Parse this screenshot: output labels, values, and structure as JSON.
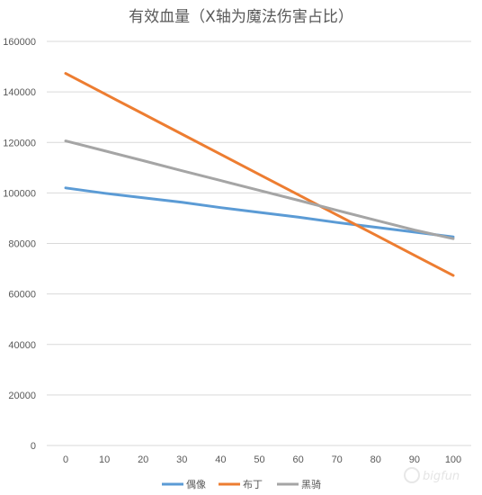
{
  "chart_data": {
    "type": "line",
    "title": "有效血量（X轴为魔法伤害占比）",
    "xlabel": "",
    "ylabel": "",
    "x": [
      0,
      10,
      20,
      30,
      40,
      50,
      60,
      70,
      80,
      90,
      100
    ],
    "x_tick_labels": [
      "0",
      "10",
      "20",
      "30",
      "40",
      "50",
      "60",
      "70",
      "80",
      "90",
      "100"
    ],
    "ylim": [
      0,
      160000
    ],
    "y_ticks": [
      0,
      20000,
      40000,
      60000,
      80000,
      100000,
      120000,
      140000,
      160000
    ],
    "y_tick_labels": [
      "0",
      "20000",
      "40000",
      "60000",
      "80000",
      "100000",
      "120000",
      "140000",
      "160000"
    ],
    "grid": true,
    "legend_position": "bottom",
    "series": [
      {
        "name": "偶像",
        "color": "#5b9bd5",
        "values": [
          102000,
          99900,
          98100,
          96300,
          94200,
          92300,
          90400,
          88300,
          86400,
          84500,
          82600
        ]
      },
      {
        "name": "布丁",
        "color": "#ed7d31",
        "values": [
          147300,
          139300,
          131300,
          123300,
          115300,
          107300,
          99300,
          91300,
          83300,
          75300,
          67300
        ]
      },
      {
        "name": "黑骑",
        "color": "#a5a5a5",
        "values": [
          120600,
          116700,
          112800,
          108800,
          104900,
          101000,
          97100,
          93100,
          89200,
          85300,
          81900
        ]
      }
    ]
  },
  "watermark": {
    "text": "bigfun",
    "icon": "bigfun-logo-icon"
  }
}
